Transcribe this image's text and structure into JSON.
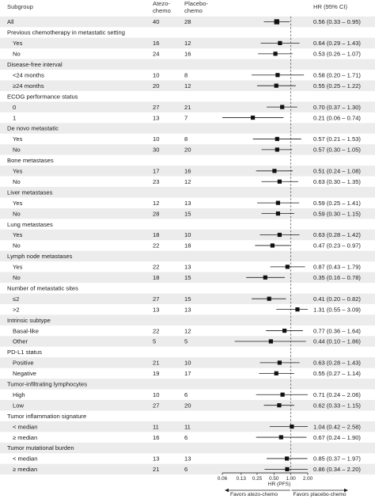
{
  "chart_data": {
    "type": "forest",
    "title": "",
    "headers": {
      "subgroup": "Subgroup",
      "group1": [
        "Atezo-",
        "chemo"
      ],
      "group2": [
        "Placebo-",
        "chemo"
      ],
      "hr": "HR (95% CI)"
    },
    "xlabel": "HR (PFS)",
    "xscale": "log2",
    "xlim": [
      0.06,
      2.0
    ],
    "xticks": [
      "0.06",
      "0.13",
      "0.25",
      "0.50",
      "1.00",
      "2.00"
    ],
    "reference_line": 1.0,
    "favors_left": "Favors atezo-chemo",
    "favors_right": "Favors placebo-chemo",
    "rows": [
      {
        "type": "data",
        "label": "All",
        "n1": "40",
        "n2": "28",
        "hr": 0.56,
        "lo": 0.33,
        "hi": 0.95,
        "text": "0.56 (0.33 – 0.95)"
      },
      {
        "type": "header",
        "label": "Previous chemotherapy in metastatic setting"
      },
      {
        "type": "data",
        "label": "Yes",
        "n1": "16",
        "n2": "12",
        "hr": 0.64,
        "lo": 0.29,
        "hi": 1.43,
        "text": "0.64 (0.29 – 1.43)"
      },
      {
        "type": "data",
        "label": "No",
        "n1": "24",
        "n2": "16",
        "hr": 0.53,
        "lo": 0.26,
        "hi": 1.07,
        "text": "0.53 (0.26 – 1.07)"
      },
      {
        "type": "header",
        "label": "Disease-free interval"
      },
      {
        "type": "data",
        "label": "<24 months",
        "n1": "10",
        "n2": "8",
        "hr": 0.58,
        "lo": 0.2,
        "hi": 1.71,
        "text": "0.58 (0.20 – 1.71)"
      },
      {
        "type": "data",
        "label": "≥24 months",
        "n1": "20",
        "n2": "12",
        "hr": 0.55,
        "lo": 0.25,
        "hi": 1.22,
        "text": "0.55 (0.25 – 1.22)"
      },
      {
        "type": "header",
        "label": "ECOG performance status"
      },
      {
        "type": "data",
        "label": "0",
        "n1": "27",
        "n2": "21",
        "hr": 0.7,
        "lo": 0.37,
        "hi": 1.3,
        "text": "0.70 (0.37 – 1.30)"
      },
      {
        "type": "data",
        "label": "1",
        "n1": "13",
        "n2": "7",
        "hr": 0.21,
        "lo": 0.06,
        "hi": 0.74,
        "text": "0.21 (0.06 – 0.74)"
      },
      {
        "type": "header",
        "label": "De novo metastatic"
      },
      {
        "type": "data",
        "label": "Yes",
        "n1": "10",
        "n2": "8",
        "hr": 0.57,
        "lo": 0.21,
        "hi": 1.53,
        "text": "0.57 (0.21 – 1.53)"
      },
      {
        "type": "data",
        "label": "No",
        "n1": "30",
        "n2": "20",
        "hr": 0.57,
        "lo": 0.3,
        "hi": 1.05,
        "text": "0.57 (0.30 – 1.05)"
      },
      {
        "type": "header",
        "label": "Bone metastases"
      },
      {
        "type": "data",
        "label": "Yes",
        "n1": "17",
        "n2": "16",
        "hr": 0.51,
        "lo": 0.24,
        "hi": 1.08,
        "text": "0.51 (0.24 – 1.08)"
      },
      {
        "type": "data",
        "label": "No",
        "n1": "23",
        "n2": "12",
        "hr": 0.63,
        "lo": 0.3,
        "hi": 1.35,
        "text": "0.63 (0.30 – 1.35)"
      },
      {
        "type": "header",
        "label": "Liver metastases"
      },
      {
        "type": "data",
        "label": "Yes",
        "n1": "12",
        "n2": "13",
        "hr": 0.59,
        "lo": 0.25,
        "hi": 1.41,
        "text": "0.59 (0.25 – 1.41)"
      },
      {
        "type": "data",
        "label": "No",
        "n1": "28",
        "n2": "15",
        "hr": 0.59,
        "lo": 0.3,
        "hi": 1.15,
        "text": "0.59 (0.30 – 1.15)"
      },
      {
        "type": "header",
        "label": "Lung metastases"
      },
      {
        "type": "data",
        "label": "Yes",
        "n1": "18",
        "n2": "10",
        "hr": 0.63,
        "lo": 0.28,
        "hi": 1.42,
        "text": "0.63 (0.28 – 1.42)"
      },
      {
        "type": "data",
        "label": "No",
        "n1": "22",
        "n2": "18",
        "hr": 0.47,
        "lo": 0.23,
        "hi": 0.97,
        "text": "0.47 (0.23 – 0.97)"
      },
      {
        "type": "header",
        "label": "Lymph node metastases"
      },
      {
        "type": "data",
        "label": "Yes",
        "n1": "22",
        "n2": "13",
        "hr": 0.87,
        "lo": 0.43,
        "hi": 1.79,
        "text": "0.87 (0.43 – 1.79)"
      },
      {
        "type": "data",
        "label": "No",
        "n1": "18",
        "n2": "15",
        "hr": 0.35,
        "lo": 0.16,
        "hi": 0.78,
        "text": "0.35 (0.16 – 0.78)"
      },
      {
        "type": "header",
        "label": "Number of metastatic sites"
      },
      {
        "type": "data",
        "label": "≤2",
        "n1": "27",
        "n2": "15",
        "hr": 0.41,
        "lo": 0.2,
        "hi": 0.82,
        "text": "0.41 (0.20 – 0.82)"
      },
      {
        "type": "data",
        "label": ">2",
        "n1": "13",
        "n2": "13",
        "hr": 1.31,
        "lo": 0.55,
        "hi": 3.09,
        "text": "1.31 (0.55 – 3.09)"
      },
      {
        "type": "header",
        "label": "Intrinsic subtype"
      },
      {
        "type": "data",
        "label": "Basal-like",
        "n1": "22",
        "n2": "12",
        "hr": 0.77,
        "lo": 0.36,
        "hi": 1.64,
        "text": "0.77 (0.36 – 1.64)"
      },
      {
        "type": "data",
        "label": "Other",
        "n1": "5",
        "n2": "5",
        "hr": 0.44,
        "lo": 0.1,
        "hi": 1.86,
        "text": "0.44 (0.10 – 1.86)"
      },
      {
        "type": "header",
        "label": "PD-L1 status"
      },
      {
        "type": "data",
        "label": "Positive",
        "n1": "21",
        "n2": "10",
        "hr": 0.63,
        "lo": 0.28,
        "hi": 1.43,
        "text": "0.63 (0.28 – 1.43)"
      },
      {
        "type": "data",
        "label": "Negative",
        "n1": "19",
        "n2": "17",
        "hr": 0.55,
        "lo": 0.27,
        "hi": 1.14,
        "text": "0.55 (0.27 – 1.14)"
      },
      {
        "type": "header",
        "label": "Tumor-infiltrating lymphocytes"
      },
      {
        "type": "data",
        "label": "High",
        "n1": "10",
        "n2": "6",
        "hr": 0.71,
        "lo": 0.24,
        "hi": 2.06,
        "text": "0.71 (0.24 – 2.06)"
      },
      {
        "type": "data",
        "label": "Low",
        "n1": "27",
        "n2": "20",
        "hr": 0.62,
        "lo": 0.33,
        "hi": 1.15,
        "text": "0.62 (0.33 – 1.15)"
      },
      {
        "type": "header",
        "label": "Tumor inflammation signature"
      },
      {
        "type": "data",
        "label": "< median",
        "n1": "11",
        "n2": "11",
        "hr": 1.04,
        "lo": 0.42,
        "hi": 2.58,
        "text": "1.04 (0.42 – 2.58)"
      },
      {
        "type": "data",
        "label": "≥ median",
        "n1": "16",
        "n2": "6",
        "hr": 0.67,
        "lo": 0.24,
        "hi": 1.9,
        "text": "0.67 (0.24 – 1.90)"
      },
      {
        "type": "header",
        "label": "Tumor mutational burden"
      },
      {
        "type": "data",
        "label": "< median",
        "n1": "13",
        "n2": "13",
        "hr": 0.85,
        "lo": 0.37,
        "hi": 1.97,
        "text": "0.85 (0.37 – 1.97)"
      },
      {
        "type": "data",
        "label": "≥ median",
        "n1": "21",
        "n2": "6",
        "hr": 0.86,
        "lo": 0.34,
        "hi": 2.2,
        "text": "0.86 (0.34 – 2.20)"
      }
    ]
  },
  "colors": {
    "band": "#ececec",
    "line": "#1a1a1a",
    "marker": "#111111",
    "reference": "#555555"
  }
}
